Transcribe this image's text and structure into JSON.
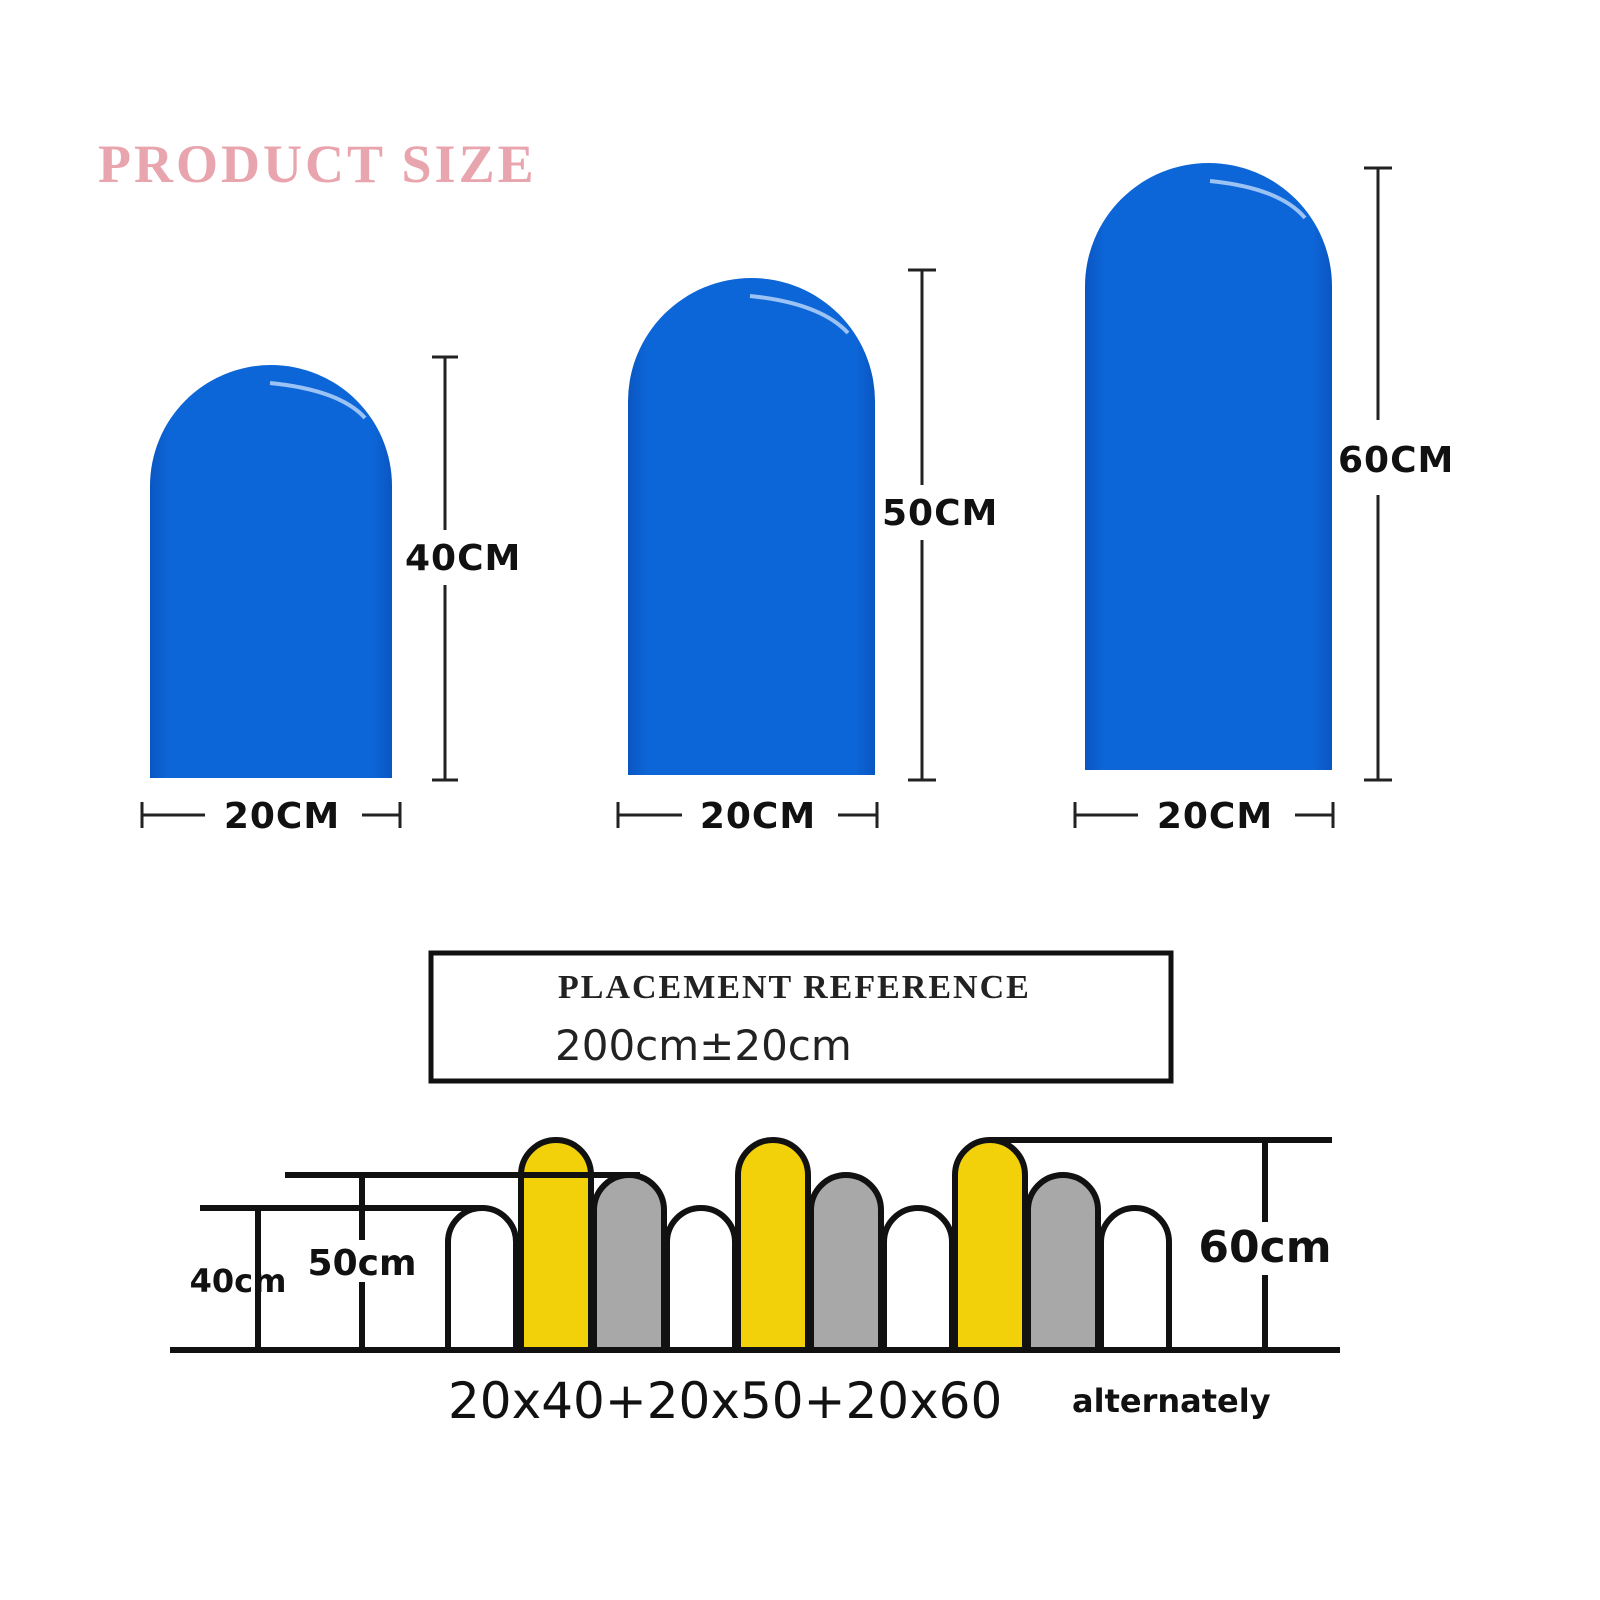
{
  "header": {
    "title": "PRODUCT SIZE"
  },
  "panels": [
    {
      "height": "40CM",
      "width": "20CM"
    },
    {
      "height": "50CM",
      "width": "20CM"
    },
    {
      "height": "60CM",
      "width": "20CM"
    }
  ],
  "placement": {
    "title": "PLACEMENT REFERENCE",
    "length": "200cm±20cm"
  },
  "fence": {
    "label_40": "40cm",
    "label_50": "50cm",
    "label_60": "60cm",
    "formula": "20x40+20x50+20x60",
    "note": "alternately"
  }
}
